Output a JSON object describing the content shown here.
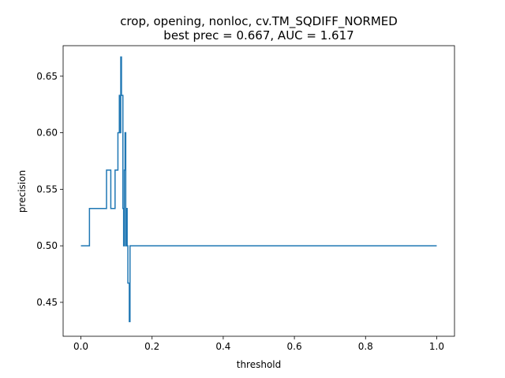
{
  "chart_data": {
    "type": "line",
    "title_line1": "crop, opening, nonloc, cv.TM_SQDIFF_NORMED",
    "title_line2": "best prec = 0.667, AUC = 1.617",
    "xlabel": "threshold",
    "ylabel": "precision",
    "xlim": [
      -0.05,
      1.05
    ],
    "ylim": [
      0.42,
      0.677
    ],
    "xticks": [
      0.0,
      0.2,
      0.4,
      0.6,
      0.8,
      1.0
    ],
    "xtick_labels": [
      "0.0",
      "0.2",
      "0.4",
      "0.6",
      "0.8",
      "1.0"
    ],
    "yticks": [
      0.45,
      0.5,
      0.55,
      0.6,
      0.65
    ],
    "ytick_labels": [
      "0.45",
      "0.50",
      "0.55",
      "0.60",
      "0.65"
    ],
    "grid": false,
    "legend": "none",
    "series": [
      {
        "color": "#1f77b4",
        "x": [
          0.0,
          0.024,
          0.024,
          0.072,
          0.072,
          0.084,
          0.084,
          0.096,
          0.096,
          0.104,
          0.104,
          0.108,
          0.108,
          0.11,
          0.11,
          0.112,
          0.112,
          0.114,
          0.114,
          0.118,
          0.118,
          0.12,
          0.12,
          0.122,
          0.122,
          0.124,
          0.124,
          0.126,
          0.126,
          0.128,
          0.128,
          0.13,
          0.13,
          0.132,
          0.132,
          0.136,
          0.136,
          0.138,
          0.138,
          0.14,
          0.14,
          1.0
        ],
        "y": [
          0.5,
          0.5,
          0.533,
          0.533,
          0.567,
          0.567,
          0.533,
          0.533,
          0.567,
          0.567,
          0.6,
          0.6,
          0.633,
          0.633,
          0.6,
          0.6,
          0.667,
          0.667,
          0.633,
          0.633,
          0.533,
          0.533,
          0.5,
          0.5,
          0.567,
          0.567,
          0.6,
          0.6,
          0.5,
          0.5,
          0.533,
          0.533,
          0.5,
          0.5,
          0.467,
          0.467,
          0.433,
          0.433,
          0.5,
          0.5,
          0.5,
          0.5
        ]
      }
    ]
  }
}
